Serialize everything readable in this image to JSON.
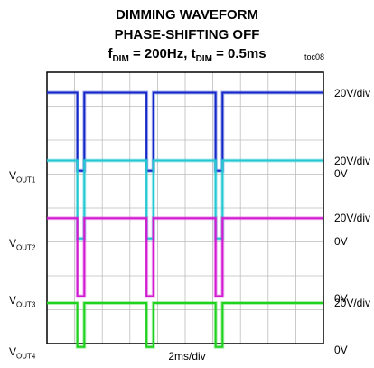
{
  "chart_data": {
    "type": "line",
    "title_lines": [
      "DIMMING WAVEFORM",
      "PHASE-SHIFTING OFF"
    ],
    "condition": {
      "f_sym": "f",
      "f_sub": "DIM",
      "f_val": " = 200Hz, ",
      "t_sym": "t",
      "t_sub": "DIM",
      "t_val": " = 0.5ms"
    },
    "figure_id": "toc08",
    "xlabel": "2ms/div",
    "x_divisions": 10,
    "y_divisions": 8,
    "channels": [
      {
        "name_main": "V",
        "name_sub": "OUT1",
        "scale": "20V/div",
        "zero_label": "0V",
        "color": "#1427c8",
        "high_div_above_zero": 2.4,
        "low_div_above_zero": 0.1,
        "zero_div": 5.0
      },
      {
        "name_main": "V",
        "name_sub": "OUT2",
        "scale": "20V/div",
        "zero_label": "0V",
        "color": "#22c8d2",
        "high_div_above_zero": 2.4,
        "low_div_above_zero": 0.1,
        "zero_div": 3.0
      },
      {
        "name_main": "V",
        "name_sub": "OUT3",
        "scale": "20V/div",
        "zero_label": "0V",
        "color": "#d21ad2",
        "high_div_above_zero": 2.4,
        "low_div_above_zero": 0.1,
        "zero_div": 1.3
      },
      {
        "name_main": "V",
        "name_sub": "OUT4",
        "scale": "20V/div",
        "zero_label": "0V",
        "color": "#1ed21e",
        "high_div_above_zero": 1.4,
        "low_div_above_zero": 0.1,
        "zero_div": -0.2
      }
    ],
    "pulse_starts_div": [
      1.1,
      3.6,
      6.1
    ],
    "pulse_width_div": 0.25
  }
}
